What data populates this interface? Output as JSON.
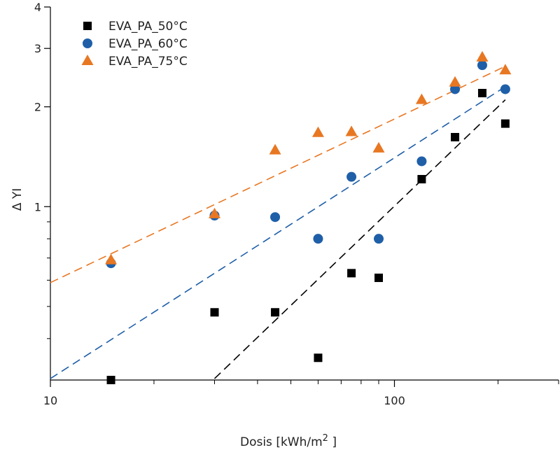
{
  "chart_data": {
    "type": "scatter",
    "xscale": "log",
    "yscale": "log",
    "xlim": [
      10,
      300
    ],
    "ylim": [
      0.3,
      4
    ],
    "xlabel": "Dosis [kWh/m",
    "xlabel_sup": "2",
    "xlabel_end": " ]",
    "ylabel": "Δ YI",
    "x_ticks": [
      {
        "value": 10,
        "label": "10"
      },
      {
        "value": 100,
        "label": "100"
      }
    ],
    "y_ticks": [
      {
        "value": 1,
        "label": "1"
      },
      {
        "value": 2,
        "label": "2"
      },
      {
        "value": 3,
        "label": "3"
      },
      {
        "value": 4,
        "label": "4"
      }
    ],
    "legend_position": "top-left",
    "grid": false,
    "series": [
      {
        "name": "EVA_PA_50°C",
        "marker": "square",
        "color": "#000000",
        "x": [
          15,
          30,
          45,
          60,
          75,
          90,
          120,
          150,
          180,
          210
        ],
        "y": [
          0.3,
          0.48,
          0.48,
          0.35,
          0.63,
          0.61,
          1.21,
          1.62,
          2.2,
          1.78
        ],
        "fit": {
          "x": [
            30,
            210
          ],
          "y": [
            0.303,
            2.1
          ]
        }
      },
      {
        "name": "EVA_PA_60°C",
        "marker": "circle",
        "color": "#1f5fa8",
        "x": [
          15,
          30,
          45,
          60,
          75,
          90,
          120,
          150,
          180,
          210
        ],
        "y": [
          0.675,
          0.94,
          0.93,
          0.8,
          1.23,
          0.8,
          1.37,
          2.26,
          2.67,
          2.26
        ],
        "fit": {
          "x": [
            10,
            210
          ],
          "y": [
            0.303,
            2.3
          ]
        }
      },
      {
        "name": "EVA_PA_75°C",
        "marker": "triangle",
        "color": "#e87722",
        "x": [
          15,
          30,
          45,
          60,
          75,
          90,
          120,
          150,
          180,
          210
        ],
        "y": [
          0.69,
          0.95,
          1.48,
          1.67,
          1.68,
          1.5,
          2.1,
          2.37,
          2.82,
          2.58
        ],
        "fit": {
          "x": [
            10,
            210
          ],
          "y": [
            0.59,
            2.65
          ]
        }
      }
    ]
  }
}
